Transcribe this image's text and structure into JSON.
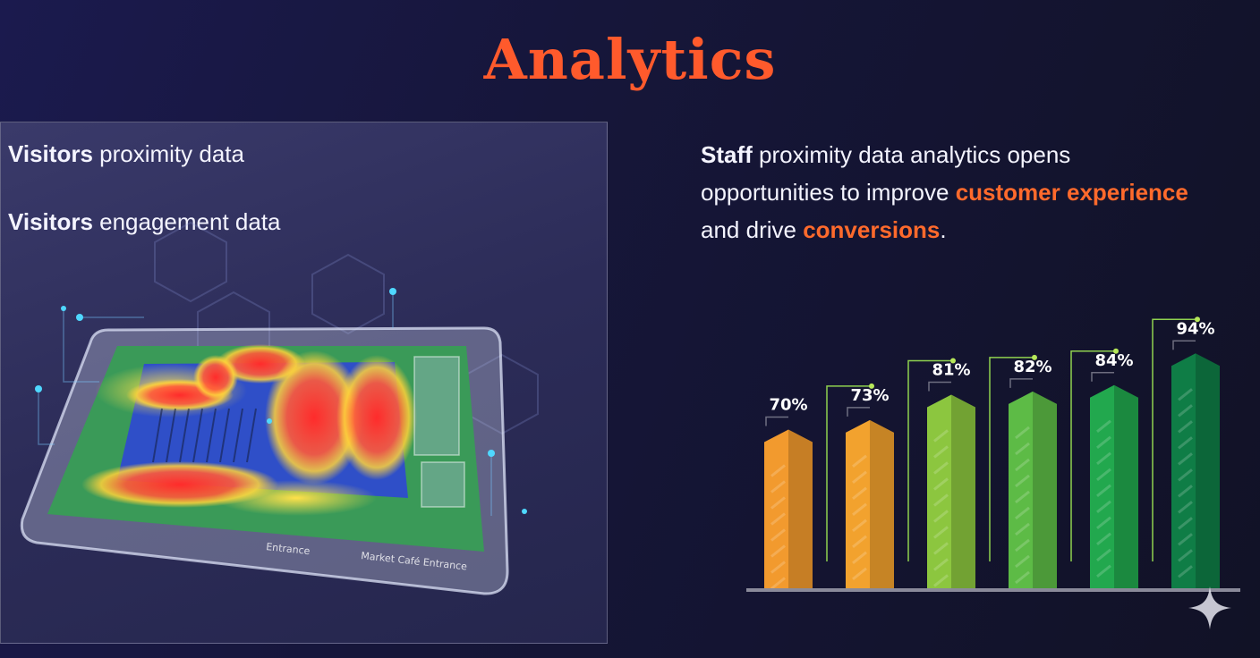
{
  "title": "Analytics",
  "left_panel": {
    "line1_bold": "Visitors",
    "line1_rest": " proximity data",
    "line2_bold": "Visitors",
    "line2_rest": " engagement data",
    "map_labels": [
      "Entrance",
      "Market Café Entrance"
    ]
  },
  "right_text": {
    "bold": "Staff",
    "part1": " proximity data analytics opens",
    "part2": "opportunities to improve ",
    "accent1": "customer experience",
    "part3": "and drive ",
    "accent2": "conversions",
    "part4": "."
  },
  "colors": {
    "accent": "#ff5a2c",
    "orange_bar": "#f29a2e",
    "green_light": "#8cc63f",
    "green_mid": "#2fb34a",
    "green_dark": "#0e8a4f"
  },
  "chart_data": {
    "type": "bar",
    "categories": [
      "",
      "",
      "",
      "",
      "",
      ""
    ],
    "values": [
      70,
      73,
      81,
      82,
      84,
      94
    ],
    "value_labels": [
      "70%",
      "73%",
      "81%",
      "82%",
      "84%",
      "94%"
    ],
    "bar_colors": [
      "#f29a2e",
      "#f2a22e",
      "#8cc63f",
      "#5dbb46",
      "#22a84e",
      "#0f7d46"
    ],
    "grid": false
  },
  "icons": {
    "corner": "sparkle-icon"
  }
}
